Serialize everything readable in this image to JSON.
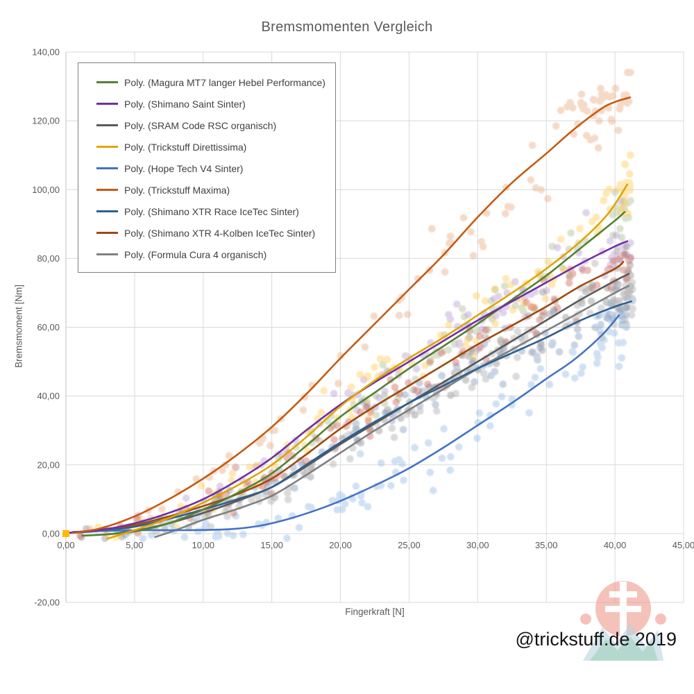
{
  "title": "Bremsmomenten Vergleich",
  "watermark": "@trickstuff.de 2019",
  "logo": {
    "red": "#ee9183",
    "white": "#ffffff",
    "blue": "#b9d4e0",
    "teal": "#84bfae"
  },
  "chart_data": {
    "type": "scatter",
    "title": "Bremsmomenten Vergleich",
    "xlabel": "Fingerkraft [N]",
    "ylabel": "Bremsmoment [Nm]",
    "xlim": [
      0,
      45
    ],
    "ylim": [
      -20,
      140
    ],
    "grid": true,
    "legend_position": "top-left-inside",
    "x_ticks": [
      {
        "v": 0,
        "label": "0,00"
      },
      {
        "v": 5,
        "label": "5,00"
      },
      {
        "v": 10,
        "label": "10,00"
      },
      {
        "v": 15,
        "label": "15,00"
      },
      {
        "v": 20,
        "label": "20,00"
      },
      {
        "v": 25,
        "label": "25,00"
      },
      {
        "v": 30,
        "label": "30,00"
      },
      {
        "v": 35,
        "label": "35,00"
      },
      {
        "v": 40,
        "label": "40,00"
      },
      {
        "v": 45,
        "label": "45,00"
      }
    ],
    "y_ticks": [
      {
        "v": 140,
        "label": "140,00"
      },
      {
        "v": 120,
        "label": "120,00"
      },
      {
        "v": 100,
        "label": "100,00"
      },
      {
        "v": 80,
        "label": "80,00"
      },
      {
        "v": 60,
        "label": "60,00"
      },
      {
        "v": 40,
        "label": "40,00"
      },
      {
        "v": 20,
        "label": "20,00"
      },
      {
        "v": 0,
        "label": "0,00"
      },
      {
        "v": -20,
        "label": "-20,00"
      }
    ],
    "origin_marker": {
      "x": 0,
      "y": 0,
      "color": "#FFB900"
    },
    "line_draw_order": [
      8,
      2,
      6,
      7,
      4,
      0,
      1,
      3,
      5
    ],
    "series": [
      {
        "name": "Magura MT7 langer Hebel Performance",
        "legend_label": "Poly. (Magura MT7 langer Hebel Performance)",
        "line_color": "#538135",
        "point_color": "#A9BC8F",
        "trend": [
          [
            1.2,
            -0.6
          ],
          [
            3,
            -0.2
          ],
          [
            5,
            0.6
          ],
          [
            7.5,
            3
          ],
          [
            10,
            7
          ],
          [
            12.5,
            11.8
          ],
          [
            15,
            17.5
          ],
          [
            17.5,
            25.5
          ],
          [
            20,
            34
          ],
          [
            22.5,
            41
          ],
          [
            25,
            48
          ],
          [
            27.5,
            54.5
          ],
          [
            30,
            61
          ],
          [
            32.5,
            68
          ],
          [
            35,
            75
          ],
          [
            37.5,
            83
          ],
          [
            40,
            91
          ],
          [
            40.7,
            93.5
          ]
        ],
        "scatter": {
          "n": 85,
          "x0": 0.5,
          "x1": 41.2,
          "s0": 1,
          "s1": 5.5,
          "seed": 101
        },
        "cluster": {
          "n": 10,
          "x0": 39.8,
          "x1": 41.2,
          "y0": 88,
          "y1": 101
        }
      },
      {
        "name": "Shimano Saint Sinter",
        "legend_label": "Poly. (Shimano Saint Sinter)",
        "line_color": "#7030A0",
        "point_color": "#B79BD4",
        "trend": [
          [
            0.3,
            0.3
          ],
          [
            2.5,
            1
          ],
          [
            5,
            3
          ],
          [
            7.5,
            6
          ],
          [
            10,
            10
          ],
          [
            12.5,
            15.5
          ],
          [
            15,
            22
          ],
          [
            17.5,
            30
          ],
          [
            20,
            37.5
          ],
          [
            22.5,
            44
          ],
          [
            25,
            50
          ],
          [
            27.5,
            56
          ],
          [
            30,
            62
          ],
          [
            32.5,
            67.5
          ],
          [
            35,
            73
          ],
          [
            37.5,
            78.5
          ],
          [
            40,
            83.5
          ],
          [
            40.9,
            85
          ]
        ],
        "scatter": {
          "n": 85,
          "x0": 0.5,
          "x1": 41.2,
          "s0": 1,
          "s1": 5,
          "seed": 202
        },
        "cluster": {
          "n": 10,
          "x0": 39.6,
          "x1": 41.2,
          "y0": 79,
          "y1": 88
        }
      },
      {
        "name": "SRAM Code RSC organisch",
        "legend_label": "Poly. (SRAM Code RSC organisch)",
        "line_color": "#595959",
        "point_color": "#8A8A8A",
        "trend": [
          [
            2.8,
            -0.3
          ],
          [
            5,
            0.8
          ],
          [
            7.5,
            3
          ],
          [
            10,
            6
          ],
          [
            12.5,
            9.5
          ],
          [
            15,
            13.5
          ],
          [
            17.5,
            19.5
          ],
          [
            20,
            26
          ],
          [
            22.5,
            32
          ],
          [
            25,
            38
          ],
          [
            27.5,
            44
          ],
          [
            30,
            50
          ],
          [
            32.5,
            56
          ],
          [
            35,
            62
          ],
          [
            37.5,
            68
          ],
          [
            40,
            73.5
          ],
          [
            41,
            75.5
          ]
        ],
        "scatter": {
          "n": 90,
          "x0": 1,
          "x1": 41.2,
          "s0": 1,
          "s1": 5,
          "seed": 303
        },
        "cluster": {
          "n": 10,
          "x0": 39.5,
          "x1": 41.2,
          "y0": 64,
          "y1": 74
        }
      },
      {
        "name": "Trickstuff Direttissima",
        "legend_label": "Poly. (Trickstuff Direttissima)",
        "line_color": "#E0A500",
        "point_color": "#FFC94D",
        "trend": [
          [
            3,
            -1.5
          ],
          [
            5,
            1
          ],
          [
            7.5,
            4.5
          ],
          [
            10,
            9
          ],
          [
            12.5,
            14
          ],
          [
            15,
            20
          ],
          [
            17.5,
            28
          ],
          [
            20,
            37
          ],
          [
            22.5,
            44.5
          ],
          [
            25,
            51
          ],
          [
            27.5,
            57
          ],
          [
            30,
            63.5
          ],
          [
            32.5,
            70
          ],
          [
            35,
            77
          ],
          [
            37.5,
            85
          ],
          [
            39.5,
            93
          ],
          [
            40.9,
            101.5
          ]
        ],
        "scatter": {
          "n": 95,
          "x0": 1,
          "x1": 41.2,
          "s0": 1.5,
          "s1": 6,
          "seed": 404
        },
        "cluster": {
          "n": 14,
          "x0": 39.3,
          "x1": 41.2,
          "y0": 95,
          "y1": 108
        }
      },
      {
        "name": "Hope Tech V4 Sinter",
        "legend_label": "Poly. (Hope Tech V4 Sinter)",
        "line_color": "#4472C4",
        "point_color": "#93B9E6",
        "trend": [
          [
            0.5,
            0.5
          ],
          [
            3,
            0.8
          ],
          [
            6,
            1
          ],
          [
            9,
            1
          ],
          [
            12,
            1.3
          ],
          [
            14,
            2.2
          ],
          [
            16,
            4
          ],
          [
            18,
            6.5
          ],
          [
            20,
            9.5
          ],
          [
            22.5,
            14
          ],
          [
            25,
            19
          ],
          [
            27.5,
            25
          ],
          [
            30,
            31.5
          ],
          [
            32.5,
            38
          ],
          [
            35,
            45
          ],
          [
            37,
            50.5
          ],
          [
            39,
            57.5
          ],
          [
            40.3,
            63.5
          ]
        ],
        "scatter": {
          "n": 90,
          "x0": 0.5,
          "x1": 41,
          "s0": 0.7,
          "s1": 5,
          "seed": 505
        },
        "cluster": {
          "n": 12,
          "x0": 38.5,
          "x1": 41,
          "y0": 48,
          "y1": 64
        }
      },
      {
        "name": "Trickstuff Maxima",
        "legend_label": "Poly. (Trickstuff Maxima)",
        "line_color": "#C55A11",
        "point_color": "#E8A87E",
        "trend": [
          [
            0.5,
            0.2
          ],
          [
            2.5,
            1.5
          ],
          [
            5,
            5
          ],
          [
            7.5,
            10
          ],
          [
            10,
            16
          ],
          [
            12.5,
            23
          ],
          [
            15,
            31
          ],
          [
            17.5,
            40.5
          ],
          [
            20,
            51
          ],
          [
            22.5,
            61
          ],
          [
            25,
            71
          ],
          [
            27.5,
            81
          ],
          [
            30,
            92
          ],
          [
            32.5,
            102
          ],
          [
            35,
            110.5
          ],
          [
            37,
            117.5
          ],
          [
            39,
            123.5
          ],
          [
            40,
            125.5
          ],
          [
            41.1,
            126.8
          ]
        ],
        "scatter": {
          "n": 72,
          "x0": 0.5,
          "x1": 41.3,
          "s0": 1.5,
          "s1": 7,
          "seed": 606
        },
        "cluster": {
          "n": 26,
          "x0": 36.5,
          "x1": 41.3,
          "y0": 122.5,
          "y1": 128.5
        }
      },
      {
        "name": "Shimano XTR Race IceTec Sinter",
        "legend_label": "Poly. (Shimano XTR Race IceTec Sinter)",
        "line_color": "#2E5F8E",
        "point_color": "#7D99BE",
        "trend": [
          [
            0.3,
            0.2
          ],
          [
            2.5,
            0.8
          ],
          [
            5,
            2
          ],
          [
            7.5,
            4.3
          ],
          [
            10,
            7
          ],
          [
            12.5,
            10
          ],
          [
            15,
            13.5
          ],
          [
            17.5,
            20
          ],
          [
            20,
            26.5
          ],
          [
            22.5,
            32.5
          ],
          [
            25,
            38
          ],
          [
            27.5,
            43
          ],
          [
            30,
            48
          ],
          [
            32.5,
            52.5
          ],
          [
            35,
            57
          ],
          [
            37.5,
            62
          ],
          [
            40,
            66
          ],
          [
            41.2,
            67.5
          ]
        ],
        "scatter": {
          "n": 85,
          "x0": 0.5,
          "x1": 41.3,
          "s0": 1,
          "s1": 4.5,
          "seed": 707
        },
        "cluster": {
          "n": 10,
          "x0": 39.8,
          "x1": 41.3,
          "y0": 59,
          "y1": 69
        }
      },
      {
        "name": "Shimano XTR 4-Kolben IceTec Sinter",
        "legend_label": "Poly. (Shimano XTR 4-Kolben IceTec Sinter)",
        "line_color": "#9C4A10",
        "point_color": "#CE6256",
        "trend": [
          [
            0.5,
            0.3
          ],
          [
            2.5,
            1.2
          ],
          [
            5,
            2.5
          ],
          [
            7.5,
            5
          ],
          [
            10,
            8
          ],
          [
            12.5,
            11.5
          ],
          [
            15,
            16
          ],
          [
            17.5,
            23
          ],
          [
            20,
            30.5
          ],
          [
            22.5,
            37
          ],
          [
            25,
            43
          ],
          [
            27.5,
            49
          ],
          [
            30,
            55
          ],
          [
            32.5,
            60.5
          ],
          [
            35,
            66
          ],
          [
            37.5,
            72
          ],
          [
            40,
            77
          ],
          [
            40.6,
            79
          ]
        ],
        "scatter": {
          "n": 88,
          "x0": 0.5,
          "x1": 41.2,
          "s0": 1,
          "s1": 5,
          "seed": 808
        },
        "cluster": {
          "n": 12,
          "x0": 39.4,
          "x1": 41.2,
          "y0": 71,
          "y1": 82
        }
      },
      {
        "name": "Formula Cura 4 organisch",
        "legend_label": "Poly. (Formula Cura 4 organisch)",
        "line_color": "#808080",
        "point_color": "#ABABAB",
        "trend": [
          [
            6.5,
            -1
          ],
          [
            8,
            1
          ],
          [
            10,
            4
          ],
          [
            12.5,
            7.2
          ],
          [
            15,
            11
          ],
          [
            17.5,
            17
          ],
          [
            20,
            23.5
          ],
          [
            22.5,
            30
          ],
          [
            25,
            36
          ],
          [
            27.5,
            42
          ],
          [
            30,
            48
          ],
          [
            32.5,
            53.5
          ],
          [
            35,
            59
          ],
          [
            37.5,
            64.5
          ],
          [
            40,
            70
          ],
          [
            41,
            72
          ]
        ],
        "scatter": {
          "n": 85,
          "x0": 1,
          "x1": 41.3,
          "s0": 1,
          "s1": 5,
          "seed": 909
        },
        "cluster": {
          "n": 12,
          "x0": 39.7,
          "x1": 41.3,
          "y0": 65,
          "y1": 74
        }
      }
    ]
  }
}
